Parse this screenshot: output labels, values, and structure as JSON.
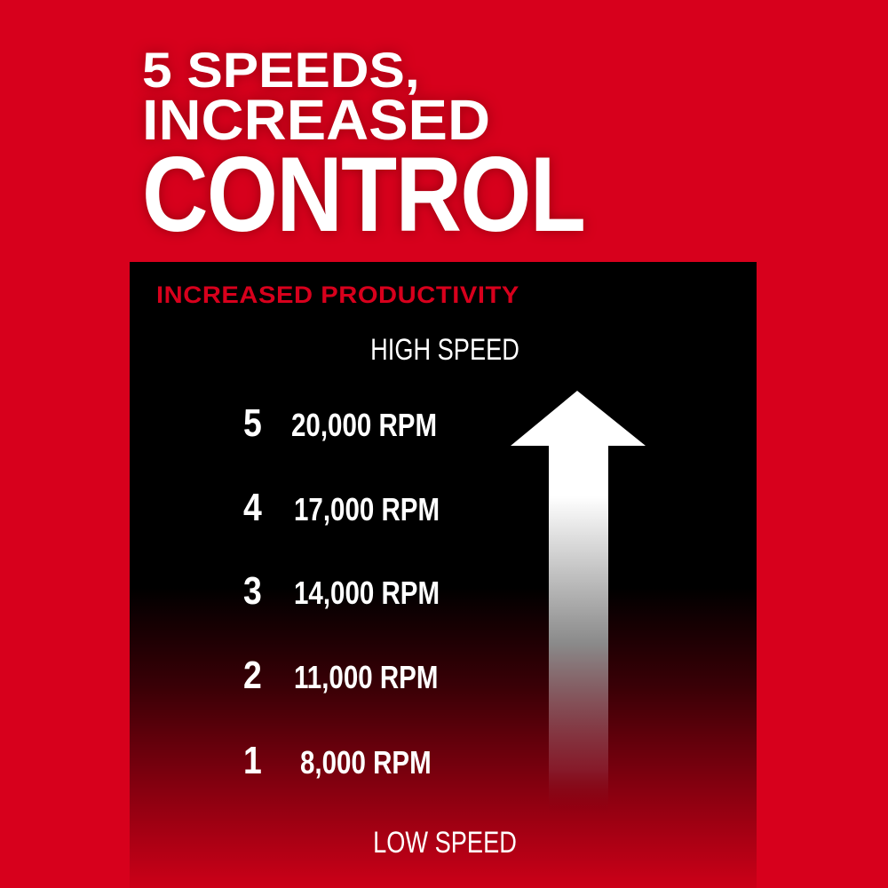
{
  "headline": {
    "line1": "5 SPEEDS,",
    "line2": "INCREASED",
    "line3": "CONTROL"
  },
  "panel": {
    "subtitle": "INCREASED PRODUCTIVITY",
    "top_label": "HIGH SPEED",
    "bottom_label": "LOW SPEED",
    "speeds": [
      {
        "setting": "5",
        "rpm": "20,000 RPM"
      },
      {
        "setting": "4",
        "rpm": "17,000 RPM"
      },
      {
        "setting": "3",
        "rpm": "14,000 RPM"
      },
      {
        "setting": "2",
        "rpm": "11,000 RPM"
      },
      {
        "setting": "1",
        "rpm": "8,000 RPM"
      }
    ]
  },
  "colors": {
    "brand_red": "#d7001c",
    "panel": "#000000",
    "text": "#ffffff"
  },
  "icons": [
    "up-arrow-icon"
  ]
}
